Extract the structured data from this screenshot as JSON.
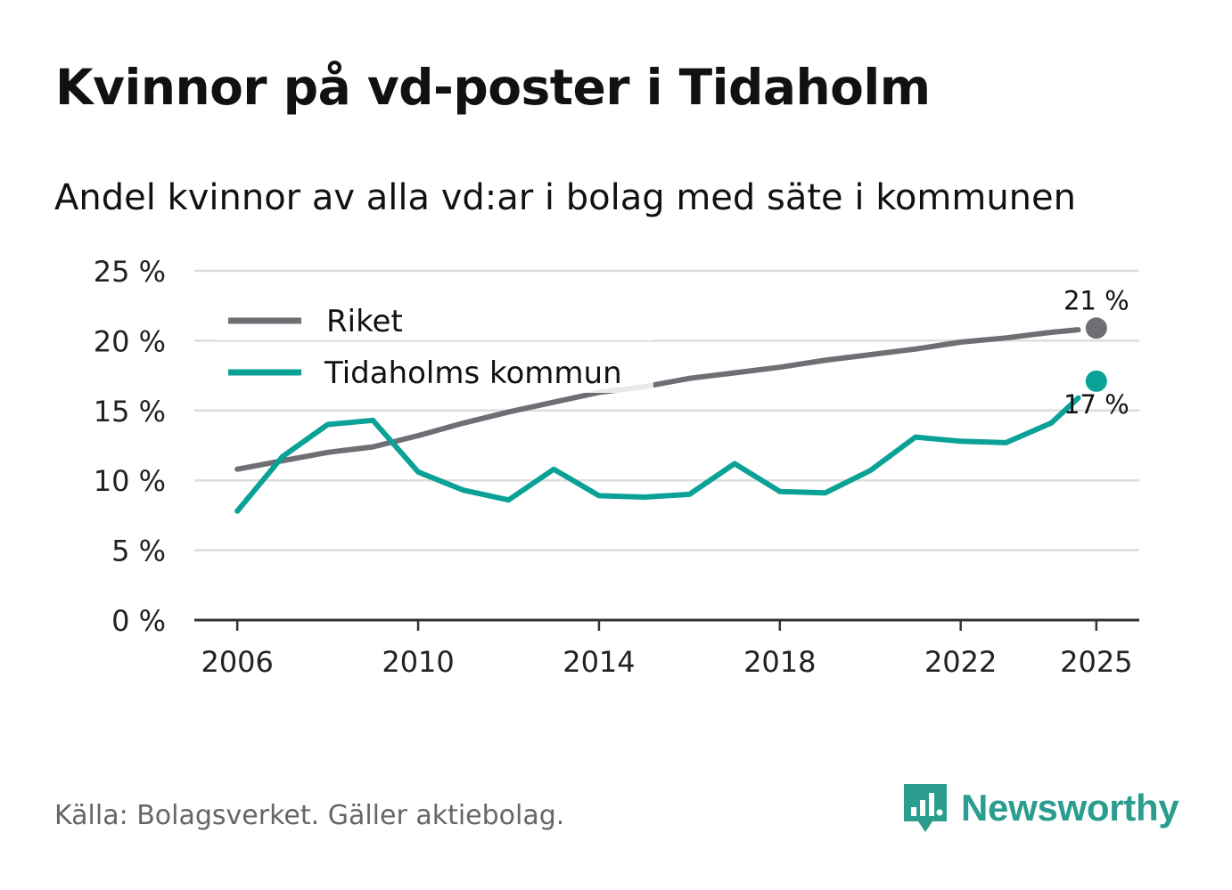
{
  "title": "Kvinnor på vd-poster i Tidaholm",
  "subtitle": "Andel kvinnor av alla vd:ar i bolag med säte i kommunen",
  "source": "Källa: Bolagsverket. Gäller aktiebolag.",
  "brand": "Newsworthy",
  "colors": {
    "riket": "#6f6e75",
    "kommun": "#0aa197",
    "grid": "#dddddd",
    "axis": "#333333",
    "brand": "#2a9d8f"
  },
  "chart_data": {
    "type": "line",
    "title": "Kvinnor på vd-poster i Tidaholm",
    "subtitle": "Andel kvinnor av alla vd:ar i bolag med säte i kommunen",
    "xlabel": "",
    "ylabel": "",
    "x": [
      2006,
      2007,
      2008,
      2009,
      2010,
      2011,
      2012,
      2013,
      2014,
      2015,
      2016,
      2017,
      2018,
      2019,
      2020,
      2021,
      2022,
      2023,
      2024,
      2025
    ],
    "xlim": [
      2005.05,
      2025.95
    ],
    "ylim": [
      0,
      25
    ],
    "x_ticks": [
      2006,
      2010,
      2014,
      2018,
      2022,
      2025
    ],
    "y_ticks": [
      0,
      5,
      10,
      15,
      20,
      25
    ],
    "y_tick_labels": [
      "0 %",
      "5 %",
      "10 %",
      "15 %",
      "20 %",
      "25 %"
    ],
    "grid": true,
    "legend_position": "top-left",
    "series": [
      {
        "name": "Riket",
        "color": "#6f6e75",
        "values": [
          10.8,
          11.4,
          12.0,
          12.4,
          13.2,
          14.1,
          14.9,
          15.6,
          16.3,
          16.7,
          17.3,
          17.7,
          18.1,
          18.6,
          19.0,
          19.4,
          19.9,
          20.2,
          20.6,
          20.9
        ],
        "end_label": "21 %"
      },
      {
        "name": "Tidaholms kommun",
        "color": "#0aa197",
        "values": [
          7.8,
          11.7,
          14.0,
          14.3,
          10.6,
          9.3,
          8.6,
          10.8,
          8.9,
          8.8,
          9.0,
          11.2,
          9.2,
          9.1,
          10.7,
          13.1,
          12.8,
          12.7,
          14.1,
          17.1
        ],
        "end_label": "17 %"
      }
    ]
  }
}
